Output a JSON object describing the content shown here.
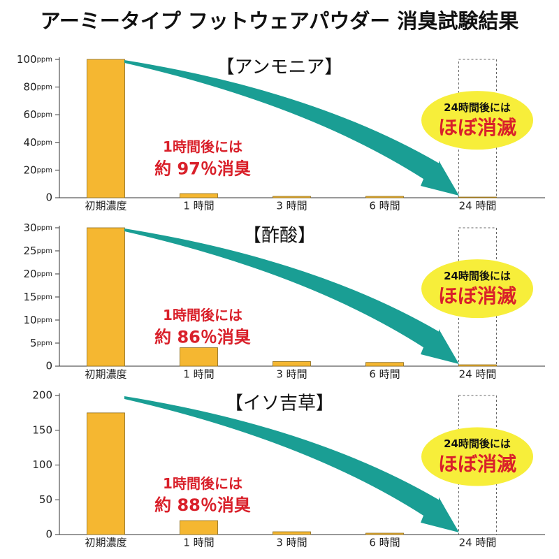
{
  "title": "アーミータイプ フットウェアパウダー 消臭試験結果",
  "chart_data": [
    {
      "type": "bar",
      "title": "【アンモニア】",
      "categories": [
        "初期濃度",
        "1 時間",
        "3 時間",
        "6 時間",
        "24 時間"
      ],
      "values": [
        100,
        3,
        1,
        1,
        0.5
      ],
      "color": "#f5b731",
      "ylim": [
        0,
        100
      ],
      "yticks": [
        0,
        {
          "value": 20,
          "label": "20ppm"
        },
        {
          "value": 40,
          "label": "40ppm"
        },
        {
          "value": 60,
          "label": "60ppm"
        },
        {
          "value": 80,
          "label": "80ppm"
        },
        {
          "value": 100,
          "label": "100ppm"
        }
      ],
      "note": [
        "1時間後には",
        "約 97％消臭"
      ],
      "callout": [
        "24時間後には",
        "ほぼ消滅"
      ]
    },
    {
      "type": "bar",
      "title": "【酢酸】",
      "categories": [
        "初期濃度",
        "1 時間",
        "3 時間",
        "6 時間",
        "24 時間"
      ],
      "values": [
        30,
        4,
        1,
        0.8,
        0.3
      ],
      "color": "#f5b731",
      "ylim": [
        0,
        30
      ],
      "yticks": [
        0,
        {
          "value": 5,
          "label": "5ppm"
        },
        {
          "value": 10,
          "label": "10ppm"
        },
        {
          "value": 15,
          "label": "15ppm"
        },
        {
          "value": 20,
          "label": "20ppm"
        },
        {
          "value": 25,
          "label": "25ppm"
        },
        {
          "value": 30,
          "label": "30ppm"
        }
      ],
      "note": [
        "1時間後には",
        "約 86％消臭"
      ],
      "callout": [
        "24時間後には",
        "ほぼ消滅"
      ]
    },
    {
      "type": "bar",
      "title": "【イソ吉草】",
      "categories": [
        "初期濃度",
        "1 時間",
        "3 時間",
        "6 時間",
        "24 時間"
      ],
      "values": [
        175,
        20,
        4,
        2,
        0
      ],
      "color": "#f5b731",
      "ylim": [
        0,
        200
      ],
      "yticks": [
        0,
        50,
        100,
        150,
        200
      ],
      "note": [
        "1時間後には",
        "約 88％消臭"
      ],
      "callout": [
        "24時間後には",
        "ほぼ消滅"
      ]
    }
  ]
}
